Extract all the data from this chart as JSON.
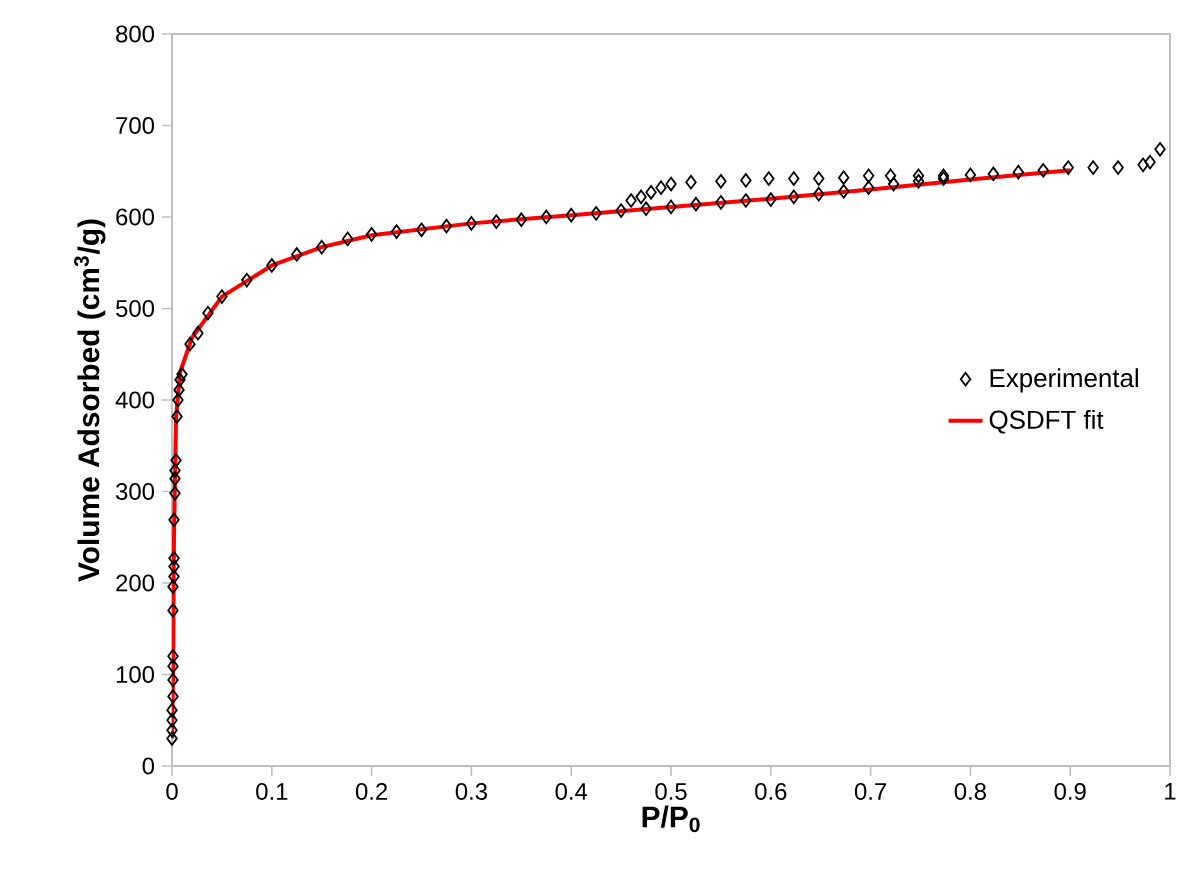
{
  "chart_data": {
    "type": "scatter",
    "xlabel": "P/P$_{0}$",
    "ylabel": "Volume Adsorbed (cm$^{3}$/g)",
    "xlim": [
      0,
      1
    ],
    "ylim": [
      0,
      800
    ],
    "xticks": [
      0,
      0.1,
      0.2,
      0.3,
      0.4,
      0.5,
      0.6,
      0.7,
      0.8,
      0.9,
      1
    ],
    "yticks": [
      0,
      100,
      200,
      300,
      400,
      500,
      600,
      700,
      800
    ],
    "grid": false,
    "legend": "right",
    "series": [
      {
        "name": "Experimental",
        "marker": "diamond",
        "color": "#000000",
        "x": [
          0,
          0,
          0,
          0,
          0.001,
          0.001,
          0.001,
          0.001,
          0.001,
          0.001,
          0.002,
          0.002,
          0.002,
          0.002,
          0.003,
          0.003,
          0.003,
          0.004,
          0.005,
          0.006,
          0.007,
          0.008,
          0.01,
          0.018,
          0.026,
          0.036,
          0.05,
          0.075,
          0.1,
          0.125,
          0.15,
          0.176,
          0.2,
          0.225,
          0.25,
          0.275,
          0.3,
          0.325,
          0.35,
          0.375,
          0.4,
          0.425,
          0.45,
          0.475,
          0.5,
          0.525,
          0.55,
          0.575,
          0.6,
          0.623,
          0.648,
          0.673,
          0.698,
          0.723,
          0.748,
          0.773,
          0.8,
          0.823,
          0.848,
          0.873,
          0.898,
          0.923,
          0.948,
          0.973,
          0.98,
          0.99,
          0.46,
          0.47,
          0.48,
          0.49,
          0.5,
          0.52,
          0.55,
          0.575,
          0.598,
          0.623,
          0.648,
          0.673,
          0.698,
          0.72,
          0.748,
          0.773
        ],
        "values": [
          30,
          39,
          50,
          61,
          76,
          94,
          109,
          120,
          170,
          196,
          207,
          218,
          227,
          269,
          298,
          314,
          323,
          334,
          382,
          400,
          411,
          422,
          428,
          461,
          473,
          495,
          513,
          531,
          547,
          559,
          567,
          576,
          581,
          584,
          586,
          590,
          593,
          595,
          597,
          600,
          602,
          604,
          607,
          609,
          611,
          614,
          616,
          618,
          619,
          622,
          625,
          628,
          632,
          636,
          639,
          642,
          646,
          647,
          649,
          651,
          654,
          654,
          654,
          657,
          660,
          674,
          618,
          622,
          627,
          632,
          636,
          638,
          639,
          640,
          642,
          642,
          642,
          643,
          645,
          645,
          645,
          645
        ]
      },
      {
        "name": "QSDFT fit",
        "type": "line",
        "marker": "none",
        "color": "#ff0000",
        "x": [
          0,
          0.001,
          0.002,
          0.004,
          0.008,
          0.02,
          0.05,
          0.1,
          0.15,
          0.2,
          0.3,
          0.4,
          0.5,
          0.6,
          0.7,
          0.8,
          0.9
        ],
        "values": [
          30,
          100,
          250,
          380,
          430,
          468,
          513,
          547,
          567,
          580,
          593,
          602,
          611,
          620,
          630,
          641,
          651
        ]
      }
    ]
  }
}
